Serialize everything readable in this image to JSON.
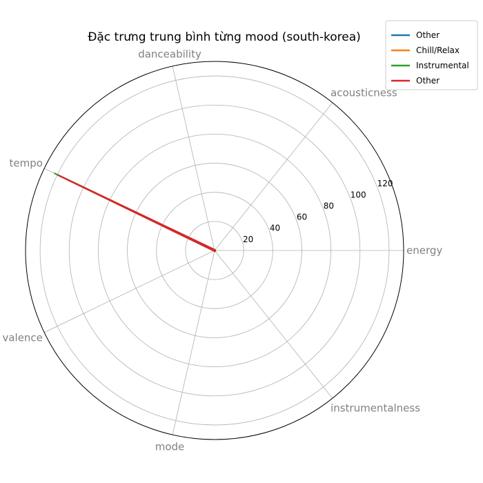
{
  "chart_data": {
    "type": "radar",
    "title": "Đặc trưng trung bình từng mood (south-korea)",
    "axes": [
      "energy",
      "acousticness",
      "danceability",
      "tempo",
      "valence",
      "mode",
      "instrumentalness"
    ],
    "rlim": [
      0,
      130
    ],
    "rticks": [
      20,
      40,
      60,
      80,
      100,
      120
    ],
    "grid": true,
    "legend_position": "top-right",
    "series": [
      {
        "name": "Other",
        "color": "#1f77b4",
        "values": [
          0.6,
          0.3,
          0.6,
          120,
          0.5,
          0.6,
          0.05
        ]
      },
      {
        "name": "Chill/Relax",
        "color": "#ff7f0e",
        "values": [
          0.45,
          0.5,
          0.55,
          118,
          0.4,
          0.6,
          0.1
        ]
      },
      {
        "name": "Instrumental",
        "color": "#2ca02c",
        "values": [
          0.4,
          0.6,
          0.5,
          122,
          0.35,
          0.5,
          0.7
        ]
      },
      {
        "name": "Other",
        "color": "#d62728",
        "values": [
          0.62,
          0.28,
          0.62,
          119,
          0.52,
          0.62,
          0.04
        ]
      }
    ]
  }
}
